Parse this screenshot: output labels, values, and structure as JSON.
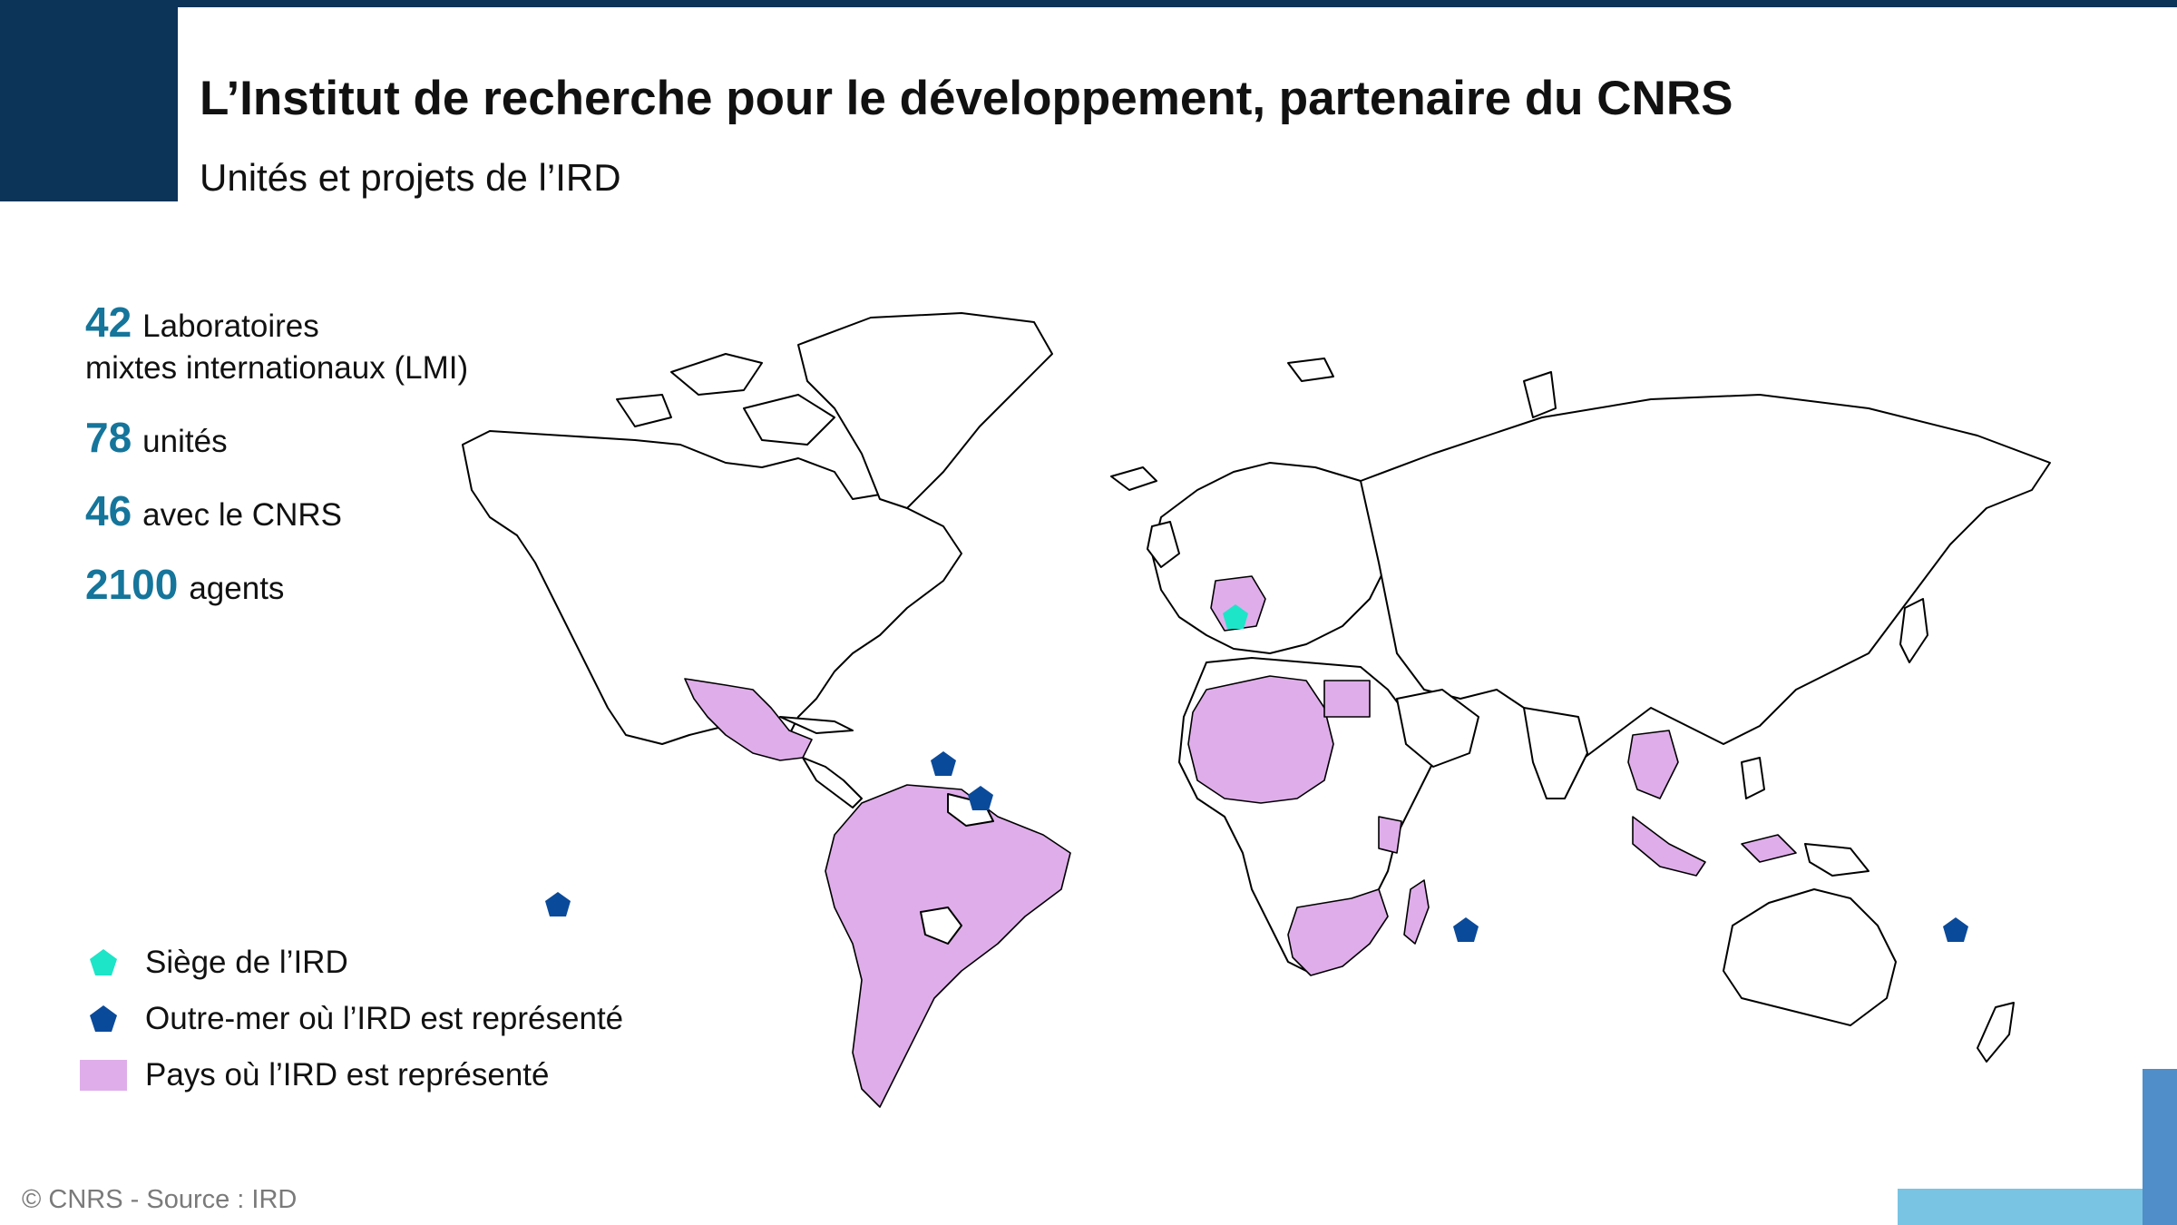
{
  "title": "L’Institut de recherche pour le développement, partenaire du CNRS",
  "subtitle": "Unités et projets de l’IRD",
  "stats": [
    {
      "number": "42",
      "line1": "Laboratoires",
      "line2": "mixtes internationaux (LMI)"
    },
    {
      "number": "78",
      "line1": "unités",
      "line2": ""
    },
    {
      "number": "46",
      "line1": "avec le CNRS",
      "line2": ""
    },
    {
      "number": "2100",
      "line1": "agents",
      "line2": ""
    }
  ],
  "legend": {
    "siege": "Siège de l’IRD",
    "outremer": "Outre-mer où l’IRD est représenté",
    "pays": "Pays où l’IRD est représenté"
  },
  "footer": "© CNRS - Source : IRD",
  "colors": {
    "brand_dark": "#0c3358",
    "stat_number": "#15759b",
    "ird_country_fill": "#dfaeea",
    "siege_marker": "#1de5c8",
    "outremer_marker": "#0a4a9a",
    "accent_light_blue": "#79c4e3",
    "accent_mid_blue": "#4f8ec8"
  },
  "icons": {
    "siege": "pentagon-marker-cyan",
    "outremer": "pentagon-marker-blue",
    "pays": "square-swatch-pink"
  }
}
